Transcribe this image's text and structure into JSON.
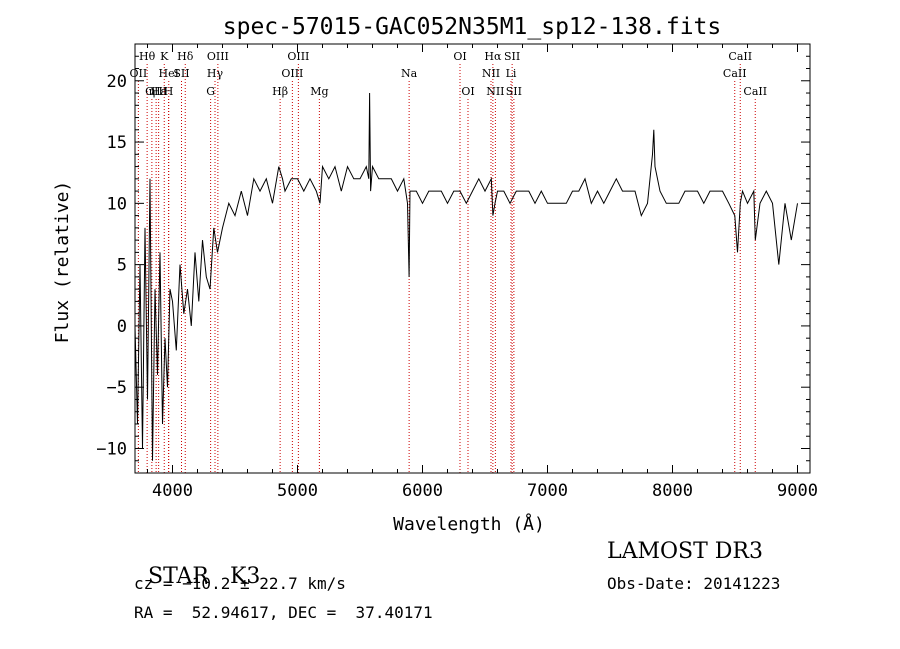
{
  "chart_data": {
    "type": "line",
    "title": "spec-57015-GAC052N35M1_sp12-138.fits",
    "xlabel": "Wavelength (Å)",
    "ylabel": "Flux (relative)",
    "xlim": [
      3700,
      9100
    ],
    "ylim": [
      -12,
      23
    ],
    "xticks": [
      4000,
      5000,
      6000,
      7000,
      8000,
      9000
    ],
    "xtick_labels": [
      "4000",
      "5000",
      "6000",
      "7000",
      "8000",
      "9000"
    ],
    "yticks": [
      -10,
      -5,
      0,
      5,
      10,
      15,
      20
    ],
    "ytick_labels": [
      "−10",
      "−5",
      "0",
      "5",
      "10",
      "15",
      "20"
    ],
    "series": [
      {
        "name": "spectrum",
        "color": "#000000",
        "x": [
          3700,
          3720,
          3740,
          3760,
          3780,
          3800,
          3820,
          3840,
          3860,
          3880,
          3900,
          3920,
          3940,
          3960,
          3980,
          4000,
          4030,
          4060,
          4090,
          4120,
          4150,
          4180,
          4210,
          4240,
          4270,
          4300,
          4330,
          4360,
          4400,
          4450,
          4500,
          4550,
          4600,
          4650,
          4700,
          4750,
          4800,
          4850,
          4880,
          4900,
          4950,
          5000,
          5050,
          5100,
          5150,
          5180,
          5200,
          5250,
          5300,
          5350,
          5400,
          5450,
          5500,
          5550,
          5570,
          5577,
          5585,
          5600,
          5650,
          5700,
          5750,
          5800,
          5850,
          5880,
          5893,
          5900,
          5950,
          6000,
          6050,
          6100,
          6150,
          6200,
          6250,
          6300,
          6350,
          6400,
          6450,
          6500,
          6550,
          6563,
          6580,
          6600,
          6650,
          6700,
          6750,
          6800,
          6850,
          6900,
          6950,
          7000,
          7050,
          7100,
          7150,
          7200,
          7250,
          7300,
          7350,
          7400,
          7450,
          7500,
          7550,
          7600,
          7650,
          7700,
          7750,
          7800,
          7840,
          7850,
          7860,
          7900,
          7950,
          8000,
          8050,
          8100,
          8150,
          8200,
          8250,
          8300,
          8350,
          8400,
          8450,
          8498,
          8520,
          8542,
          8560,
          8600,
          8650,
          8662,
          8700,
          8750,
          8800,
          8850,
          8900,
          8950,
          9000
        ],
        "y": [
          0,
          -8,
          5,
          -10,
          8,
          -6,
          12,
          -11,
          3,
          -4,
          6,
          -8,
          -1,
          -5,
          3,
          2,
          -2,
          5,
          1,
          3,
          0,
          6,
          2,
          7,
          4,
          3,
          8,
          6,
          8,
          10,
          9,
          11,
          9,
          12,
          11,
          12,
          10,
          13,
          12,
          11,
          12,
          12,
          11,
          12,
          11,
          10,
          13,
          12,
          13,
          11,
          13,
          12,
          12,
          13,
          12,
          19,
          11,
          13,
          12,
          12,
          12,
          11,
          12,
          10,
          4,
          11,
          11,
          10,
          11,
          11,
          11,
          10,
          11,
          11,
          10,
          11,
          12,
          11,
          12,
          9,
          10,
          11,
          11,
          10,
          11,
          11,
          11,
          10,
          11,
          10,
          10,
          10,
          10,
          11,
          11,
          12,
          10,
          11,
          10,
          11,
          12,
          11,
          11,
          11,
          9,
          10,
          14,
          16,
          13,
          11,
          10,
          10,
          10,
          11,
          11,
          11,
          10,
          11,
          11,
          11,
          10,
          9,
          6,
          10,
          11,
          10,
          11,
          7,
          10,
          11,
          10,
          5,
          10,
          7,
          10
        ]
      }
    ],
    "lines": [
      {
        "name": "Hθ",
        "wavelength": 3797,
        "row": 0
      },
      {
        "name": "OII",
        "wavelength": 3727,
        "row": 1
      },
      {
        "name": "OIII",
        "wavelength": 3869,
        "row": 2
      },
      {
        "name": "Hε",
        "wavelength": 3889,
        "row": 2
      },
      {
        "name": "K",
        "wavelength": 3934,
        "row": 0
      },
      {
        "name": "HeI",
        "wavelength": 3970,
        "row": 1
      },
      {
        "name": "η",
        "wavelength": 3835,
        "row": 2
      },
      {
        "name": "H",
        "wavelength": 3968,
        "row": 2
      },
      {
        "name": "SII",
        "wavelength": 4072,
        "row": 1
      },
      {
        "name": "Hδ",
        "wavelength": 4102,
        "row": 0
      },
      {
        "name": "OIII",
        "wavelength": 4363,
        "row": 0
      },
      {
        "name": "Hγ",
        "wavelength": 4340,
        "row": 1
      },
      {
        "name": "G",
        "wavelength": 4305,
        "row": 2
      },
      {
        "name": "Hβ",
        "wavelength": 4861,
        "row": 2
      },
      {
        "name": "OIII",
        "wavelength": 5007,
        "row": 0
      },
      {
        "name": "OIII",
        "wavelength": 4959,
        "row": 1
      },
      {
        "name": "Mg",
        "wavelength": 5175,
        "row": 2
      },
      {
        "name": "Na",
        "wavelength": 5893,
        "row": 1
      },
      {
        "name": "OI",
        "wavelength": 6300,
        "row": 0
      },
      {
        "name": "OI",
        "wavelength": 6364,
        "row": 2
      },
      {
        "name": "Hα",
        "wavelength": 6563,
        "row": 0
      },
      {
        "name": "NII",
        "wavelength": 6548,
        "row": 1
      },
      {
        "name": "NII",
        "wavelength": 6583,
        "row": 2
      },
      {
        "name": "SII",
        "wavelength": 6717,
        "row": 0
      },
      {
        "name": "Li",
        "wavelength": 6708,
        "row": 1
      },
      {
        "name": "SII",
        "wavelength": 6731,
        "row": 2
      },
      {
        "name": "CaII",
        "wavelength": 8542,
        "row": 0
      },
      {
        "name": "CaII",
        "wavelength": 8498,
        "row": 1
      },
      {
        "name": "CaII",
        "wavelength": 8662,
        "row": 2
      }
    ],
    "line_color": "#cc0000"
  },
  "info": {
    "class": "STAR",
    "subclass": "K3",
    "survey": "LAMOST DR3",
    "cz": "cz = −10.2 ± 22.7 km/s",
    "obs_date": "Obs-Date: 20141223",
    "coords": "RA =  52.94617, DEC =  37.40171"
  }
}
